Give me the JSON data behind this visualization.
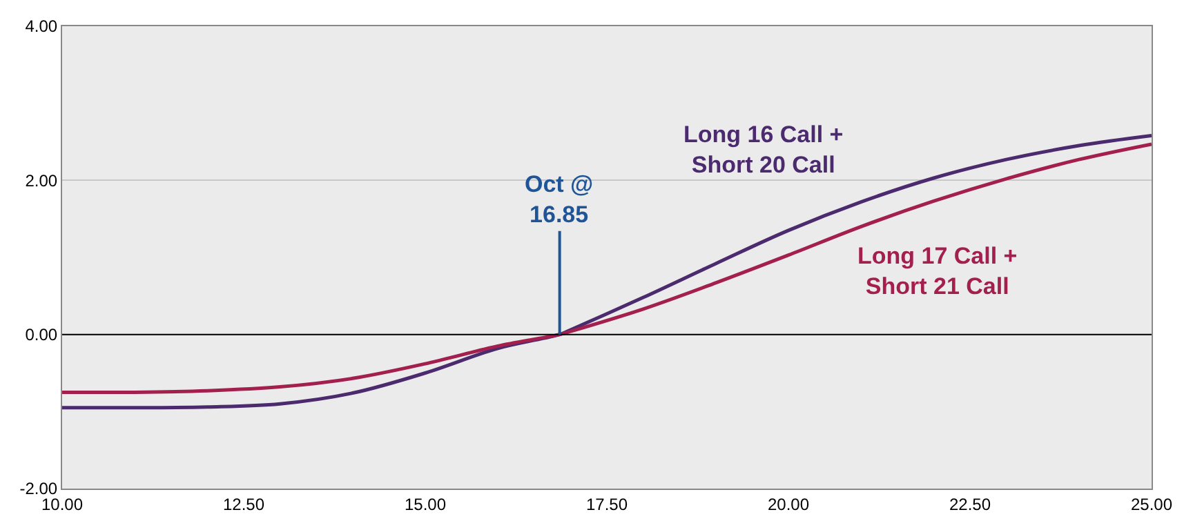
{
  "chart_data": {
    "type": "line",
    "xlim": [
      10,
      25
    ],
    "ylim": [
      -2,
      4
    ],
    "xticks": [
      {
        "value": 10,
        "label": "10.00"
      },
      {
        "value": 12.5,
        "label": "12.50"
      },
      {
        "value": 15,
        "label": "15.00"
      },
      {
        "value": 17.5,
        "label": "17.50"
      },
      {
        "value": 20,
        "label": "20.00"
      },
      {
        "value": 22.5,
        "label": "22.50"
      },
      {
        "value": 25,
        "label": "25.00"
      }
    ],
    "yticks": [
      {
        "value": -2,
        "label": "-2.00"
      },
      {
        "value": 0,
        "label": "0.00"
      },
      {
        "value": 2,
        "label": "2.00"
      },
      {
        "value": 4,
        "label": "4.00"
      }
    ],
    "x": [
      10,
      11,
      12,
      13,
      14,
      15,
      16,
      16.85,
      17,
      18,
      19,
      20,
      21,
      22,
      23,
      24,
      25
    ],
    "series": [
      {
        "name": "Long 16 Call + Short 20 Call",
        "color": "#4b2a6e",
        "values": [
          -0.95,
          -0.95,
          -0.94,
          -0.9,
          -0.76,
          -0.5,
          -0.18,
          0,
          0.06,
          0.48,
          0.92,
          1.35,
          1.72,
          2.03,
          2.27,
          2.45,
          2.58
        ]
      },
      {
        "name": "Long 17 Call + Short 21 Call",
        "color": "#a3204e",
        "values": [
          -0.75,
          -0.75,
          -0.73,
          -0.68,
          -0.57,
          -0.38,
          -0.15,
          0,
          0.04,
          0.33,
          0.67,
          1.03,
          1.4,
          1.73,
          2.02,
          2.27,
          2.47
        ]
      }
    ],
    "ref_lines": [
      {
        "axis": "y",
        "value": 0,
        "color": "#000000"
      }
    ],
    "annotations": [
      {
        "text": "Oct @ 16.85",
        "x": 16.85,
        "y": 0
      }
    ],
    "grid": "y",
    "legend": false,
    "marker": "none",
    "line_style": "solid"
  }
}
